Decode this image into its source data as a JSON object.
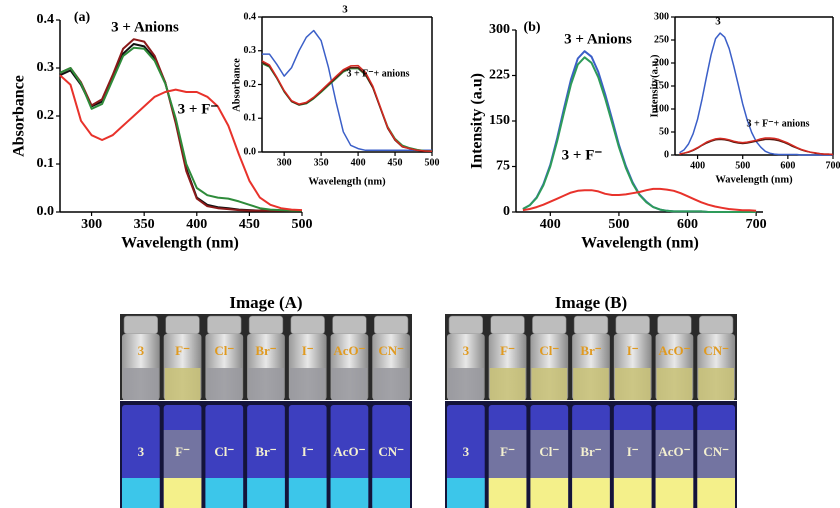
{
  "chart_data": [
    {
      "type": "line",
      "annotations": [
        "(a)",
        "3 + Anions",
        "3 + F⁻"
      ],
      "xlabel": "Wavelength (nm)",
      "ylabel": "Absorbance",
      "x": [
        270,
        280,
        290,
        300,
        310,
        320,
        330,
        340,
        350,
        360,
        370,
        380,
        390,
        400,
        410,
        420,
        430,
        440,
        450,
        460,
        470,
        480,
        490,
        500
      ],
      "series": [
        {
          "color": "#111111",
          "values": [
            0.285,
            0.295,
            0.265,
            0.22,
            0.23,
            0.28,
            0.33,
            0.35,
            0.345,
            0.32,
            0.27,
            0.19,
            0.09,
            0.03,
            0.015,
            0.01,
            0.008,
            0.005,
            0.004,
            0.003,
            0.003,
            0.003,
            0.003,
            0.003
          ]
        },
        {
          "color": "#8b1a1a",
          "values": [
            0.29,
            0.3,
            0.27,
            0.222,
            0.235,
            0.285,
            0.34,
            0.36,
            0.355,
            0.325,
            0.27,
            0.185,
            0.085,
            0.028,
            0.012,
            0.008,
            0.006,
            0.004,
            0.003,
            0.003,
            0.003,
            0.003,
            0.003,
            0.003
          ]
        },
        {
          "color": "#2e8b3a",
          "values": [
            0.29,
            0.3,
            0.268,
            0.215,
            0.225,
            0.275,
            0.325,
            0.342,
            0.34,
            0.315,
            0.268,
            0.195,
            0.1,
            0.05,
            0.035,
            0.03,
            0.028,
            0.022,
            0.015,
            0.008,
            0.005,
            0.004,
            0.003,
            0.003
          ]
        },
        {
          "color": "#e8322b",
          "values": [
            0.285,
            0.265,
            0.19,
            0.16,
            0.15,
            0.16,
            0.18,
            0.2,
            0.22,
            0.24,
            0.25,
            0.255,
            0.25,
            0.25,
            0.24,
            0.22,
            0.18,
            0.12,
            0.065,
            0.03,
            0.015,
            0.008,
            0.005,
            0.004
          ]
        }
      ],
      "xlim": [
        270,
        500
      ],
      "ylim": [
        0,
        0.4
      ],
      "xticks": [
        300,
        350,
        400,
        450,
        500
      ],
      "yticks": [
        {
          "value": 0,
          "label": "0.0"
        },
        0.1,
        0.2,
        0.3,
        0.4
      ]
    },
    {
      "type": "line",
      "annotations": [
        "3",
        "3 + F⁻+ anions"
      ],
      "xlabel": "Wavelength (nm)",
      "ylabel": "Absorbance",
      "x": [
        270,
        280,
        290,
        300,
        310,
        320,
        330,
        340,
        350,
        360,
        370,
        380,
        390,
        400,
        410,
        420,
        430,
        440,
        450,
        460,
        470,
        480,
        490,
        500
      ],
      "series": [
        {
          "color": "#3b5fc8",
          "values": [
            0.29,
            0.29,
            0.26,
            0.225,
            0.25,
            0.3,
            0.34,
            0.36,
            0.33,
            0.25,
            0.15,
            0.06,
            0.02,
            0.01,
            0.005,
            0.005,
            0.005,
            0.005,
            0.005,
            0.005,
            0.005,
            0.005,
            0.005,
            0.005
          ]
        },
        {
          "color": "#2e8b3a",
          "values": [
            0.262,
            0.252,
            0.218,
            0.178,
            0.149,
            0.139,
            0.143,
            0.158,
            0.177,
            0.197,
            0.217,
            0.237,
            0.247,
            0.247,
            0.228,
            0.19,
            0.132,
            0.075,
            0.04,
            0.02,
            0.012,
            0.007,
            0.004,
            0.003
          ]
        },
        {
          "color": "#5a1a10",
          "values": [
            0.265,
            0.255,
            0.22,
            0.18,
            0.15,
            0.14,
            0.145,
            0.16,
            0.18,
            0.2,
            0.22,
            0.24,
            0.25,
            0.25,
            0.23,
            0.19,
            0.13,
            0.07,
            0.035,
            0.015,
            0.01,
            0.005,
            0.003,
            0.002
          ]
        },
        {
          "color": "#d42a22",
          "values": [
            0.27,
            0.258,
            0.222,
            0.182,
            0.152,
            0.142,
            0.147,
            0.162,
            0.182,
            0.203,
            0.224,
            0.244,
            0.255,
            0.256,
            0.236,
            0.195,
            0.134,
            0.073,
            0.037,
            0.016,
            0.01,
            0.005,
            0.003,
            0.002
          ]
        }
      ],
      "xlim": [
        270,
        500
      ],
      "ylim": [
        0,
        0.4
      ],
      "xticks": [
        300,
        350,
        400,
        450,
        500
      ],
      "yticks": [
        {
          "value": 0,
          "label": "0.0"
        },
        0.1,
        0.2,
        0.3,
        0.4
      ]
    },
    {
      "type": "line",
      "annotations": [
        "(b)",
        "3 + Anions",
        "3 + F⁻"
      ],
      "xlabel": "Wavelength (nm)",
      "ylabel": "Intensity (a.u)",
      "x": [
        360,
        370,
        380,
        390,
        400,
        410,
        420,
        430,
        440,
        450,
        460,
        470,
        480,
        490,
        500,
        510,
        520,
        530,
        540,
        550,
        560,
        570,
        580,
        590,
        600,
        610,
        620,
        630,
        640,
        650,
        660,
        670,
        680,
        690,
        700
      ],
      "series": [
        {
          "color": "#3b5fc8",
          "values": [
            5,
            11,
            24,
            46,
            78,
            122,
            171,
            218,
            253,
            265,
            256,
            231,
            194,
            153,
            111,
            76,
            49,
            29,
            17,
            8,
            4,
            2,
            1,
            1,
            1,
            1,
            1,
            0,
            0,
            0,
            0,
            0,
            0,
            0,
            0
          ]
        },
        {
          "color": "#2e9b5a",
          "values": [
            5,
            11,
            23,
            44,
            75,
            117,
            164,
            210,
            243,
            255,
            246,
            222,
            187,
            147,
            107,
            73,
            47,
            28,
            16,
            8,
            4,
            2,
            1,
            1,
            1,
            1,
            1,
            0,
            0,
            0,
            0,
            0,
            0,
            0,
            0
          ]
        },
        {
          "color": "#e8322b",
          "values": [
            3,
            5,
            8,
            12,
            17,
            22,
            27,
            32,
            35,
            36,
            36,
            34,
            30,
            28,
            28,
            29,
            31,
            33,
            36,
            38,
            38,
            37,
            35,
            31,
            26,
            21,
            16,
            12,
            9,
            7,
            5,
            4,
            3,
            3,
            2
          ]
        }
      ],
      "xlim": [
        350,
        710
      ],
      "ylim": [
        0,
        300
      ],
      "xticks": [
        400,
        500,
        600,
        700
      ],
      "yticks": [
        0,
        75,
        150,
        225,
        300
      ]
    },
    {
      "type": "line",
      "annotations": [
        "3",
        "3 + F⁻+ anions"
      ],
      "xlabel": "Wavelength (nm)",
      "ylabel": "Intensity(a.u.)",
      "x": [
        360,
        370,
        380,
        390,
        400,
        410,
        420,
        430,
        440,
        450,
        460,
        470,
        480,
        490,
        500,
        510,
        520,
        530,
        540,
        550,
        560,
        570,
        580,
        590,
        600,
        610,
        620,
        630,
        640,
        650,
        660,
        670,
        680,
        690,
        700
      ],
      "series": [
        {
          "color": "#3b5fc8",
          "values": [
            5,
            11,
            24,
            46,
            78,
            122,
            171,
            218,
            253,
            265,
            256,
            231,
            194,
            153,
            111,
            76,
            49,
            29,
            17,
            8,
            4,
            2,
            1,
            1,
            1,
            1,
            1,
            0,
            0,
            0,
            0,
            0,
            0,
            0,
            0
          ]
        },
        {
          "color": "#5a1a10",
          "values": [
            2,
            4,
            6,
            10,
            15,
            21,
            26,
            30,
            33,
            34,
            33,
            31,
            28,
            26,
            25,
            26,
            28,
            30,
            32,
            34,
            34,
            33,
            31,
            28,
            24,
            19,
            15,
            11,
            8,
            6,
            4,
            3,
            2,
            2,
            1
          ]
        },
        {
          "color": "#d42a22",
          "values": [
            2,
            4,
            7,
            11,
            16,
            22,
            28,
            32,
            35,
            36,
            35,
            33,
            30,
            28,
            27,
            28,
            30,
            32,
            35,
            37,
            37,
            36,
            34,
            30,
            26,
            21,
            16,
            12,
            9,
            6,
            5,
            3,
            2,
            2,
            1
          ]
        }
      ],
      "xlim": [
        350,
        700
      ],
      "ylim": [
        0,
        300
      ],
      "xticks": [
        400,
        500,
        600,
        700
      ],
      "yticks": [
        0,
        50,
        100,
        150,
        200,
        250,
        300
      ]
    }
  ],
  "images": [
    {
      "title": "Image (A)",
      "labels": [
        "3",
        "F⁻",
        "Cl⁻",
        "Br⁻",
        "I⁻",
        "AcO⁻",
        "CN⁻"
      ]
    },
    {
      "title": "Image (B)",
      "labels": [
        "3",
        "F⁻",
        "Cl⁻",
        "Br⁻",
        "I⁻",
        "AcO⁻",
        "CN⁻"
      ]
    }
  ]
}
